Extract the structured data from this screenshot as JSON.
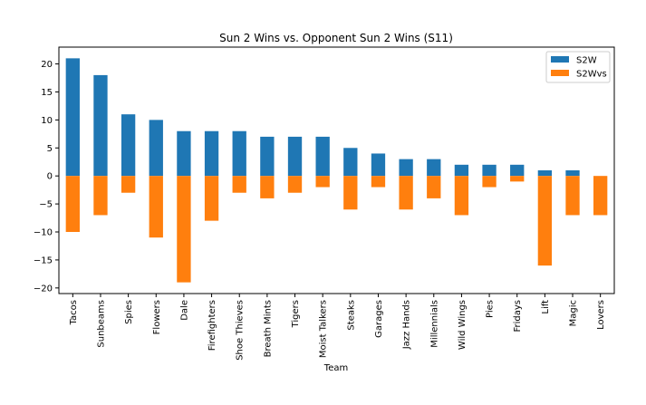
{
  "chart_data": {
    "type": "bar",
    "title": "Sun 2 Wins vs. Opponent Sun 2 Wins (S11)",
    "xlabel": "Team",
    "ylabel": "",
    "ylim": [
      -21,
      23
    ],
    "yticks": [
      20,
      15,
      10,
      5,
      0,
      -5,
      -10,
      -15,
      -20
    ],
    "ytick_labels": [
      "20",
      "15",
      "10",
      "5",
      "0",
      "−5",
      "−10",
      "−15",
      "−20"
    ],
    "categories": [
      "Tacos",
      "Sunbeams",
      "Spies",
      "Flowers",
      "Dale",
      "Firefighters",
      "Shoe Thieves",
      "Breath Mints",
      "Tigers",
      "Moist Talkers",
      "Steaks",
      "Garages",
      "Jazz Hands",
      "Millennials",
      "Wild Wings",
      "Pies",
      "Fridays",
      "Lift",
      "Magic",
      "Lovers"
    ],
    "series": [
      {
        "name": "S2W",
        "color": "#1f77b4",
        "values": [
          21,
          18,
          11,
          10,
          8,
          8,
          8,
          7,
          7,
          7,
          5,
          4,
          3,
          3,
          2,
          2,
          2,
          1,
          1,
          0
        ]
      },
      {
        "name": "S2Wvs",
        "color": "#ff7f0e",
        "values": [
          -10,
          -7,
          -3,
          -11,
          -19,
          -8,
          -3,
          -4,
          -3,
          -2,
          -6,
          -2,
          -6,
          -4,
          -7,
          -2,
          -1,
          -16,
          -7,
          -7
        ]
      }
    ],
    "legend_position": "top-right",
    "grid": false,
    "stacked": true
  }
}
